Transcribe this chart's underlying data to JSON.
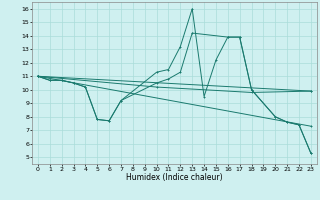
{
  "xlabel": "Humidex (Indice chaleur)",
  "xlim": [
    -0.5,
    23.5
  ],
  "ylim": [
    4.5,
    16.5
  ],
  "yticks": [
    5,
    6,
    7,
    8,
    9,
    10,
    11,
    12,
    13,
    14,
    15,
    16
  ],
  "xticks": [
    0,
    1,
    2,
    3,
    4,
    5,
    6,
    7,
    8,
    9,
    10,
    11,
    12,
    13,
    14,
    15,
    16,
    17,
    18,
    19,
    20,
    21,
    22,
    23
  ],
  "bg_color": "#cff0f0",
  "grid_color": "#aaddda",
  "line_color": "#1a7a6e",
  "line1_x": [
    0,
    1,
    2,
    3,
    4,
    5,
    6,
    7,
    10,
    11,
    12,
    13,
    14,
    15,
    16,
    17,
    18,
    20,
    21,
    22,
    23
  ],
  "line1_y": [
    11,
    10.7,
    10.7,
    10.5,
    10.2,
    7.8,
    7.7,
    9.2,
    11.3,
    11.5,
    13.2,
    16.0,
    9.5,
    12.2,
    13.9,
    13.9,
    10.0,
    8.0,
    7.6,
    7.4,
    5.3
  ],
  "line2_x": [
    0,
    1,
    2,
    3,
    4,
    5,
    6,
    7,
    10,
    11,
    12,
    13,
    16,
    17,
    18,
    20,
    21,
    22,
    23
  ],
  "line2_y": [
    11,
    10.7,
    10.7,
    10.5,
    10.2,
    7.8,
    7.7,
    9.2,
    10.5,
    10.8,
    11.3,
    14.2,
    13.9,
    13.9,
    10.0,
    8.0,
    7.6,
    7.4,
    5.3
  ],
  "line3_x": [
    0,
    23
  ],
  "line3_y": [
    11,
    9.9
  ],
  "line4_x": [
    0,
    23
  ],
  "line4_y": [
    11,
    7.3
  ],
  "line5_x": [
    0,
    10,
    18,
    23
  ],
  "line5_y": [
    11,
    10.2,
    9.8,
    9.9
  ]
}
